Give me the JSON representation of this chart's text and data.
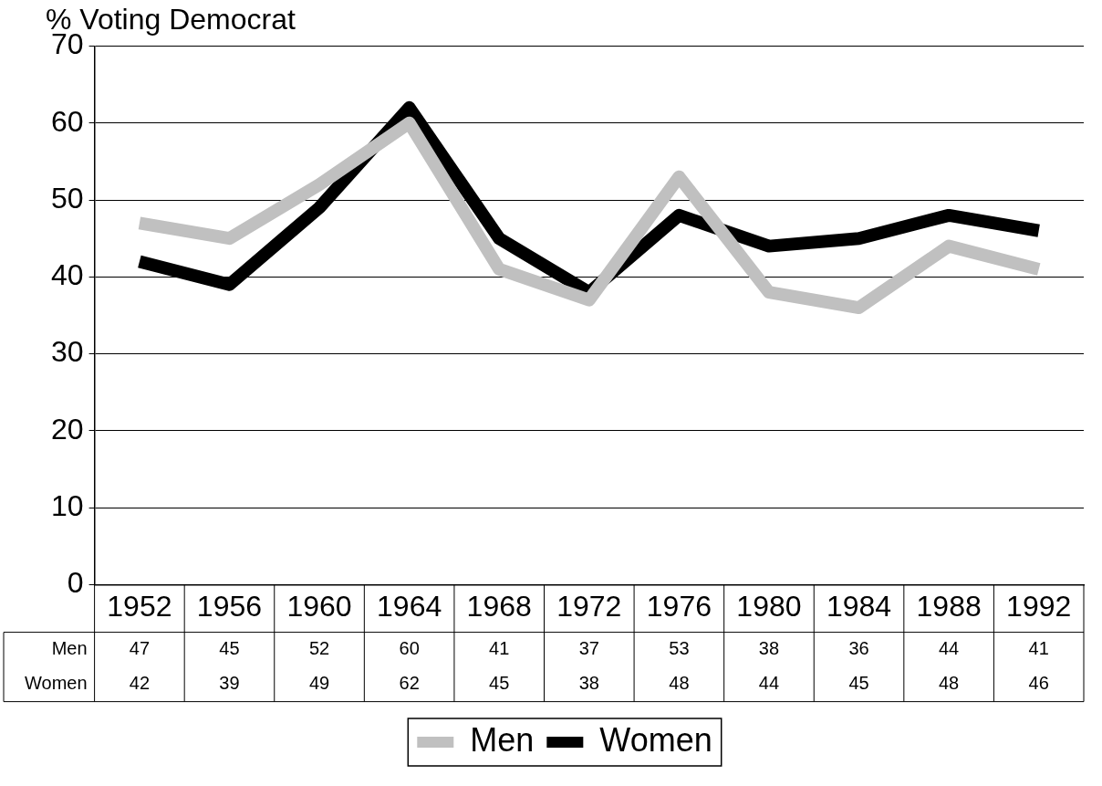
{
  "chart_data": {
    "type": "line",
    "title": "% Voting Democrat",
    "categories": [
      "1952",
      "1956",
      "1960",
      "1964",
      "1968",
      "1972",
      "1976",
      "1980",
      "1984",
      "1988",
      "1992"
    ],
    "series": [
      {
        "name": "Men",
        "color": "#c0c0c0",
        "values": [
          47,
          45,
          52,
          60,
          41,
          37,
          53,
          38,
          36,
          44,
          41
        ]
      },
      {
        "name": "Women",
        "color": "#000000",
        "values": [
          42,
          39,
          49,
          62,
          45,
          38,
          48,
          44,
          45,
          48,
          46
        ]
      }
    ],
    "ylim": [
      0,
      70
    ],
    "yticks": [
      0,
      10,
      20,
      30,
      40,
      50,
      60,
      70
    ],
    "grid": "y",
    "legend": "bottom",
    "marker": "none",
    "line_style": "solid",
    "data_labels": true
  }
}
